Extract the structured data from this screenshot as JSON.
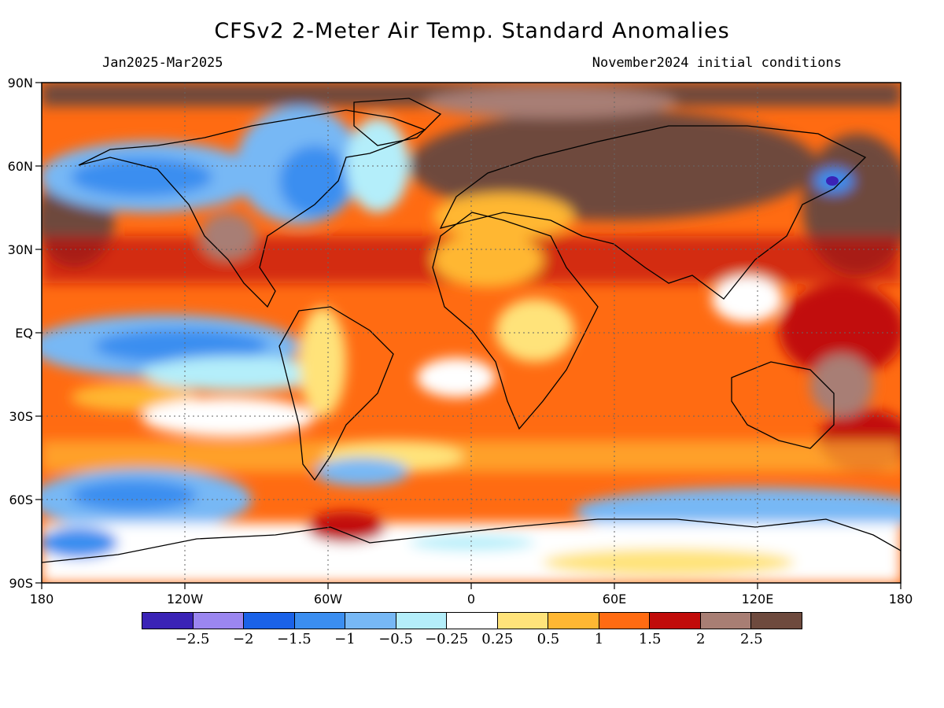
{
  "header": {
    "title": "CFSv2 2-Meter Air Temp. Standard Anomalies",
    "period": "Jan2025-Mar2025",
    "initial_conditions": "November2024 initial conditions"
  },
  "map": {
    "lat_labels": [
      "90N",
      "60N",
      "30N",
      "EQ",
      "30S",
      "60S",
      "90S"
    ],
    "lon_labels": [
      "180",
      "120W",
      "60W",
      "0",
      "60E",
      "120E",
      "180"
    ]
  },
  "legend": {
    "colors": [
      "#3a23b6",
      "#9b86f0",
      "#1a62e8",
      "#3b8ef0",
      "#77b8f5",
      "#b4eefa",
      "#ffffff",
      "#ffe37a",
      "#ffb733",
      "#ff6b12",
      "#c10c0a",
      "#a87e74",
      "#6e4a3e"
    ],
    "labels": [
      "-2.5",
      "-2",
      "-1.5",
      "-1",
      "-0.5",
      "-0.25",
      "0.25",
      "0.5",
      "1",
      "1.5",
      "2",
      "2.5"
    ]
  },
  "chart_data": {
    "type": "heatmap",
    "title": "CFSv2 2-Meter Air Temp. Standard Anomalies",
    "subtitle_left": "Jan2025-Mar2025",
    "subtitle_right": "November2024 initial conditions",
    "xlim": [
      -180,
      180
    ],
    "ylim": [
      -90,
      90
    ],
    "x_ticks": [
      "180",
      "120W",
      "60W",
      "0",
      "60E",
      "120E",
      "180"
    ],
    "y_ticks": [
      "90N",
      "60N",
      "30N",
      "EQ",
      "30S",
      "60S",
      "90S"
    ],
    "color_scale_levels": [
      -2.5,
      -2,
      -1.5,
      -1,
      -0.5,
      -0.25,
      0.25,
      0.5,
      1,
      1.5,
      2,
      2.5
    ],
    "grid": true
  }
}
